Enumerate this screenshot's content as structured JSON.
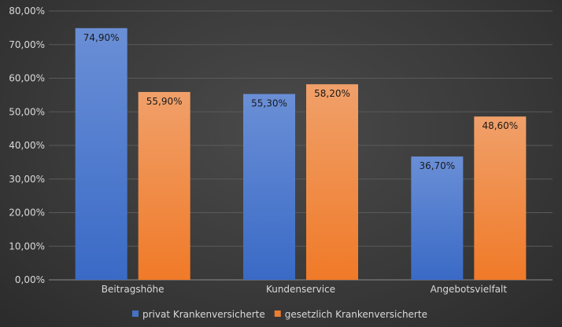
{
  "chart_data": {
    "type": "bar",
    "categories": [
      "Beitragshöhe",
      "Kundenservice",
      "Angebotsvielfalt"
    ],
    "series": [
      {
        "name": "privat Krankenversicherte",
        "values": [
          74.9,
          55.3,
          36.7
        ],
        "labels": [
          "74,90%",
          "55,30%",
          "36,70%"
        ],
        "color": "#4472c4"
      },
      {
        "name": "gesetzlich Krankenversicherte",
        "values": [
          55.9,
          58.2,
          48.6
        ],
        "labels": [
          "55,90%",
          "58,20%",
          "48,60%"
        ],
        "color": "#ed7d31"
      }
    ],
    "yticks": [
      "0,00%",
      "10,00%",
      "20,00%",
      "30,00%",
      "40,00%",
      "50,00%",
      "60,00%",
      "70,00%",
      "80,00%"
    ],
    "ylim": [
      0,
      80
    ],
    "grid": true,
    "legend_position": "bottom",
    "title": "",
    "xlabel": "",
    "ylabel": ""
  }
}
